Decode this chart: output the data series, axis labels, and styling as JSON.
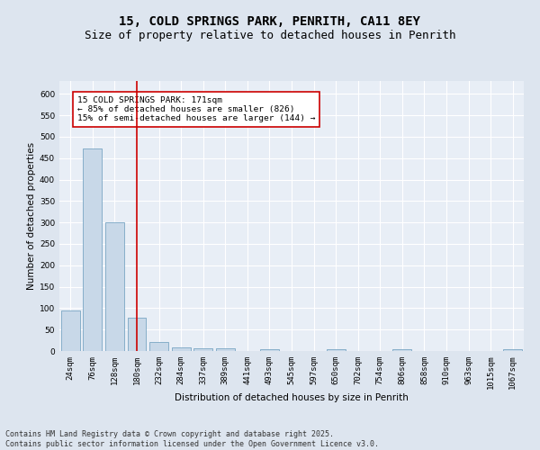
{
  "title": "15, COLD SPRINGS PARK, PENRITH, CA11 8EY",
  "subtitle": "Size of property relative to detached houses in Penrith",
  "xlabel": "Distribution of detached houses by size in Penrith",
  "ylabel": "Number of detached properties",
  "categories": [
    "24sqm",
    "76sqm",
    "128sqm",
    "180sqm",
    "232sqm",
    "284sqm",
    "337sqm",
    "389sqm",
    "441sqm",
    "493sqm",
    "545sqm",
    "597sqm",
    "650sqm",
    "702sqm",
    "754sqm",
    "806sqm",
    "858sqm",
    "910sqm",
    "963sqm",
    "1015sqm",
    "1067sqm"
  ],
  "values": [
    95,
    472,
    300,
    78,
    22,
    9,
    7,
    7,
    0,
    5,
    0,
    0,
    5,
    0,
    0,
    5,
    0,
    0,
    0,
    0,
    5
  ],
  "bar_color": "#c8d8e8",
  "bar_edge_color": "#6699bb",
  "vline_color": "#cc0000",
  "annotation_text": "15 COLD SPRINGS PARK: 171sqm\n← 85% of detached houses are smaller (826)\n15% of semi-detached houses are larger (144) →",
  "annotation_box_color": "#ffffff",
  "annotation_box_edge_color": "#cc0000",
  "ylim": [
    0,
    630
  ],
  "yticks": [
    0,
    50,
    100,
    150,
    200,
    250,
    300,
    350,
    400,
    450,
    500,
    550,
    600
  ],
  "footnote": "Contains HM Land Registry data © Crown copyright and database right 2025.\nContains public sector information licensed under the Open Government Licence v3.0.",
  "background_color": "#dde5ef",
  "plot_background_color": "#e8eef6",
  "grid_color": "#ffffff",
  "title_fontsize": 10,
  "subtitle_fontsize": 9,
  "axis_label_fontsize": 7.5,
  "tick_fontsize": 6.5,
  "annotation_fontsize": 6.8,
  "footnote_fontsize": 6.0
}
